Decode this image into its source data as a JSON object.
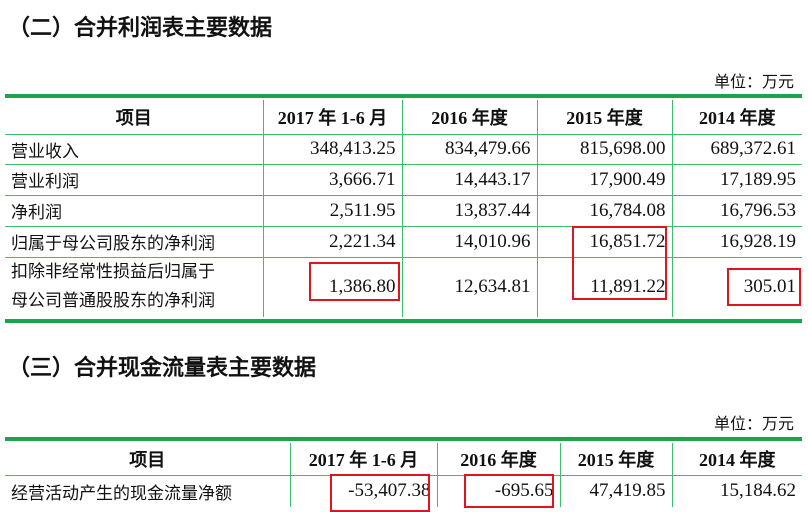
{
  "section1": {
    "title": "（二）合并利润表主要数据",
    "unit": "单位：万元",
    "headers": [
      "项目",
      "2017 年 1-6 月",
      "2016 年度",
      "2015 年度",
      "2014 年度"
    ],
    "rows": [
      [
        "营业收入",
        "348,413.25",
        "834,479.66",
        "815,698.00",
        "689,372.61"
      ],
      [
        "营业利润",
        "3,666.71",
        "14,443.17",
        "17,900.49",
        "17,189.95"
      ],
      [
        "净利润",
        "2,511.95",
        "13,837.44",
        "16,784.08",
        "16,796.53"
      ],
      [
        "归属于母公司股东的净利润",
        "2,221.34",
        "14,010.96",
        "16,851.72",
        "16,928.19"
      ],
      [
        "扣除非经常性损益后归属于母公司普通股股东的净利润",
        "1,386.80",
        "12,634.81",
        "11,891.22",
        "305.01"
      ]
    ],
    "row5_label_lines": [
      "扣除非经常性损益后归属于",
      "母公司普通股股东的净利润"
    ]
  },
  "section2": {
    "title": "（三）合并现金流量表主要数据",
    "unit": "单位：万元",
    "headers": [
      "项目",
      "2017 年 1-6 月",
      "2016 年度",
      "2015 年度",
      "2014 年度"
    ],
    "rows": [
      [
        "经营活动产生的现金流量净额",
        "-53,407.38",
        "-695.65",
        "47,419.85",
        "15,184.62"
      ]
    ]
  },
  "colors": {
    "rule": "#1aa54a",
    "grid": "#3cbf6a",
    "highlight_box": "#e0141e"
  }
}
